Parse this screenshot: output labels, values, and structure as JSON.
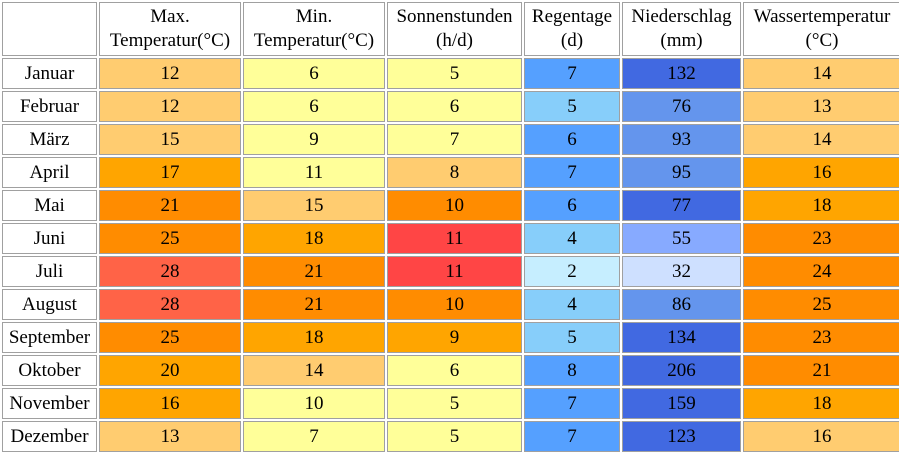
{
  "chart_data": {
    "type": "table",
    "columns": [
      {
        "line1": "",
        "line2": ""
      },
      {
        "line1": "Max.",
        "line2": "Temperatur(°C)"
      },
      {
        "line1": "Min.",
        "line2": "Temperatur(°C)"
      },
      {
        "line1": "Sonnenstunden",
        "line2": "(h/d)"
      },
      {
        "line1": "Regentage",
        "line2": "(d)"
      },
      {
        "line1": "Niederschlag",
        "line2": "(mm)"
      },
      {
        "line1": "Wassertemperatur",
        "line2": "(°C)"
      }
    ],
    "rows": [
      {
        "month": "Januar",
        "cells": [
          {
            "value": "12",
            "color": "#ffcc70"
          },
          {
            "value": "6",
            "color": "#ffff99"
          },
          {
            "value": "5",
            "color": "#ffff99"
          },
          {
            "value": "7",
            "color": "#55a0ff"
          },
          {
            "value": "132",
            "color": "#4169e1"
          },
          {
            "value": "14",
            "color": "#ffcc70"
          }
        ]
      },
      {
        "month": "Februar",
        "cells": [
          {
            "value": "12",
            "color": "#ffcc70"
          },
          {
            "value": "6",
            "color": "#ffff99"
          },
          {
            "value": "6",
            "color": "#ffff99"
          },
          {
            "value": "5",
            "color": "#87cefa"
          },
          {
            "value": "76",
            "color": "#6495ed"
          },
          {
            "value": "13",
            "color": "#ffcc70"
          }
        ]
      },
      {
        "month": "März",
        "cells": [
          {
            "value": "15",
            "color": "#ffcc70"
          },
          {
            "value": "9",
            "color": "#ffff99"
          },
          {
            "value": "7",
            "color": "#ffff99"
          },
          {
            "value": "6",
            "color": "#55a0ff"
          },
          {
            "value": "93",
            "color": "#6495ed"
          },
          {
            "value": "14",
            "color": "#ffcc70"
          }
        ]
      },
      {
        "month": "April",
        "cells": [
          {
            "value": "17",
            "color": "#ffa500"
          },
          {
            "value": "11",
            "color": "#ffff99"
          },
          {
            "value": "8",
            "color": "#ffcc70"
          },
          {
            "value": "7",
            "color": "#55a0ff"
          },
          {
            "value": "95",
            "color": "#6495ed"
          },
          {
            "value": "16",
            "color": "#ffa500"
          }
        ]
      },
      {
        "month": "Mai",
        "cells": [
          {
            "value": "21",
            "color": "#ff8c00"
          },
          {
            "value": "15",
            "color": "#ffcc70"
          },
          {
            "value": "10",
            "color": "#ff8c00"
          },
          {
            "value": "6",
            "color": "#55a0ff"
          },
          {
            "value": "77",
            "color": "#4169e1"
          },
          {
            "value": "18",
            "color": "#ffa500"
          }
        ]
      },
      {
        "month": "Juni",
        "cells": [
          {
            "value": "25",
            "color": "#ff8c00"
          },
          {
            "value": "18",
            "color": "#ffa500"
          },
          {
            "value": "11",
            "color": "#ff4545"
          },
          {
            "value": "4",
            "color": "#87cefa"
          },
          {
            "value": "55",
            "color": "#87aaff"
          },
          {
            "value": "23",
            "color": "#ff8c00"
          }
        ]
      },
      {
        "month": "Juli",
        "cells": [
          {
            "value": "28",
            "color": "#ff6347"
          },
          {
            "value": "21",
            "color": "#ff8c00"
          },
          {
            "value": "11",
            "color": "#ff4545"
          },
          {
            "value": "2",
            "color": "#c6eeff"
          },
          {
            "value": "32",
            "color": "#cee0ff"
          },
          {
            "value": "24",
            "color": "#ff8c00"
          }
        ]
      },
      {
        "month": "August",
        "cells": [
          {
            "value": "28",
            "color": "#ff6347"
          },
          {
            "value": "21",
            "color": "#ff8c00"
          },
          {
            "value": "10",
            "color": "#ff8c00"
          },
          {
            "value": "4",
            "color": "#87cefa"
          },
          {
            "value": "86",
            "color": "#6495ed"
          },
          {
            "value": "25",
            "color": "#ff8c00"
          }
        ]
      },
      {
        "month": "September",
        "cells": [
          {
            "value": "25",
            "color": "#ff8c00"
          },
          {
            "value": "18",
            "color": "#ffa500"
          },
          {
            "value": "9",
            "color": "#ffa500"
          },
          {
            "value": "5",
            "color": "#87cefa"
          },
          {
            "value": "134",
            "color": "#4169e1"
          },
          {
            "value": "23",
            "color": "#ff8c00"
          }
        ]
      },
      {
        "month": "Oktober",
        "cells": [
          {
            "value": "20",
            "color": "#ffa500"
          },
          {
            "value": "14",
            "color": "#ffcc70"
          },
          {
            "value": "6",
            "color": "#ffff99"
          },
          {
            "value": "8",
            "color": "#55a0ff"
          },
          {
            "value": "206",
            "color": "#4169e1"
          },
          {
            "value": "21",
            "color": "#ff8c00"
          }
        ]
      },
      {
        "month": "November",
        "cells": [
          {
            "value": "16",
            "color": "#ffa500"
          },
          {
            "value": "10",
            "color": "#ffff99"
          },
          {
            "value": "5",
            "color": "#ffff99"
          },
          {
            "value": "7",
            "color": "#55a0ff"
          },
          {
            "value": "159",
            "color": "#4169e1"
          },
          {
            "value": "18",
            "color": "#ffa500"
          }
        ]
      },
      {
        "month": "Dezember",
        "cells": [
          {
            "value": "13",
            "color": "#ffcc70"
          },
          {
            "value": "7",
            "color": "#ffff99"
          },
          {
            "value": "5",
            "color": "#ffff99"
          },
          {
            "value": "7",
            "color": "#55a0ff"
          },
          {
            "value": "123",
            "color": "#4169e1"
          },
          {
            "value": "16",
            "color": "#ffcc70"
          }
        ]
      }
    ]
  }
}
